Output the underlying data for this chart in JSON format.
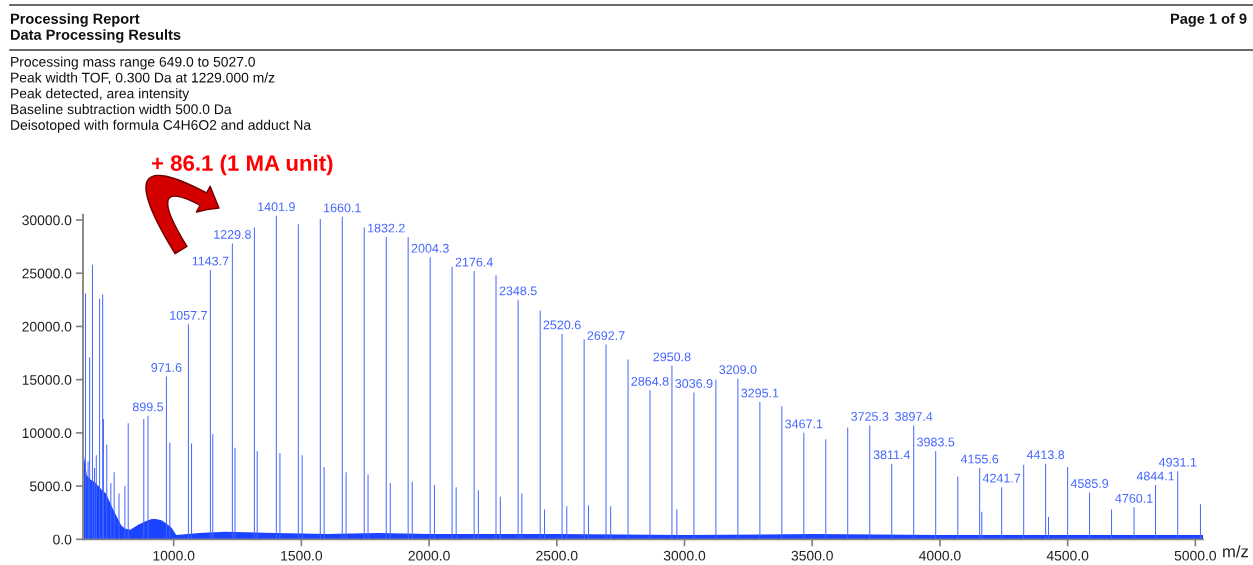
{
  "chart_data": {
    "type": "bar",
    "title": "Processing Report",
    "subtitle": "Data Processing Results",
    "xlabel": "m/z",
    "annotations": [
      "Processing mass range 649.0 to 5027.0",
      "Peak width TOF, 0.300 Da at 1229.000 m/z",
      "Peak detected, area intensity",
      "Baseline subtraction width 500.0 Da",
      "Deisotoped with formula C4H6O2 and adduct Na",
      "+ 86.1 (1 MA unit)",
      "Page 1 of 9",
      {
        "text": "899.5",
        "x": 899.5,
        "y": 11600
      },
      {
        "text": "971.6",
        "x": 971.6,
        "y": 15300
      },
      {
        "text": "1057.7",
        "x": 1057.7,
        "y": 20200
      },
      {
        "text": "1143.7",
        "x": 1143.7,
        "y": 25300
      },
      {
        "text": "1229.8",
        "x": 1229.8,
        "y": 27800
      },
      {
        "text": "1401.9",
        "x": 1401.9,
        "y": 30400
      },
      {
        "text": "1660.1",
        "x": 1660.1,
        "y": 30300
      },
      {
        "text": "1832.2",
        "x": 1832.2,
        "y": 28400
      },
      {
        "text": "2004.3",
        "x": 2004.3,
        "y": 26500
      },
      {
        "text": "2176.4",
        "x": 2176.4,
        "y": 25200
      },
      {
        "text": "2348.5",
        "x": 2348.5,
        "y": 22500
      },
      {
        "text": "2520.6",
        "x": 2520.6,
        "y": 19300
      },
      {
        "text": "2692.7",
        "x": 2692.7,
        "y": 18300
      },
      {
        "text": "2864.8",
        "x": 2864.8,
        "y": 14000
      },
      {
        "text": "2950.8",
        "x": 2950.8,
        "y": 16300
      },
      {
        "text": "3036.9",
        "x": 3036.9,
        "y": 13800
      },
      {
        "text": "3209.0",
        "x": 3209.0,
        "y": 15100
      },
      {
        "text": "3295.1",
        "x": 3295.1,
        "y": 12900
      },
      {
        "text": "3467.1",
        "x": 3467.1,
        "y": 10000
      },
      {
        "text": "3725.3",
        "x": 3725.3,
        "y": 10700
      },
      {
        "text": "3811.4",
        "x": 3811.4,
        "y": 7100
      },
      {
        "text": "3897.4",
        "x": 3897.4,
        "y": 10700
      },
      {
        "text": "3983.5",
        "x": 3983.5,
        "y": 8300
      },
      {
        "text": "4155.6",
        "x": 4155.6,
        "y": 6700
      },
      {
        "text": "4241.7",
        "x": 4241.7,
        "y": 4900
      },
      {
        "text": "4413.8",
        "x": 4413.8,
        "y": 7100
      },
      {
        "text": "4585.9",
        "x": 4585.9,
        "y": 4400
      },
      {
        "text": "4760.1",
        "x": 4760.1,
        "y": 3000
      },
      {
        "text": "4844.1",
        "x": 4844.1,
        "y": 5100
      },
      {
        "text": "4931.1",
        "x": 4931.1,
        "y": 6400
      }
    ],
    "xlim": [
      645,
      5030
    ],
    "ylim": [
      0,
      30500
    ],
    "xticks": [
      {
        "value": 1000,
        "label": "1000.0"
      },
      {
        "value": 1500,
        "label": "1500.0"
      },
      {
        "value": 2000,
        "label": "2000.0"
      },
      {
        "value": 2500,
        "label": "2500.0"
      },
      {
        "value": 3000,
        "label": "3000.0"
      },
      {
        "value": 3500,
        "label": "3500.0"
      },
      {
        "value": 4000,
        "label": "4000.0"
      },
      {
        "value": 4500,
        "label": "4500.0"
      },
      {
        "value": 5000,
        "label": "5000.0"
      }
    ],
    "yticks": [
      {
        "value": 0,
        "label": "0.0"
      },
      {
        "value": 5000,
        "label": "5000.0"
      },
      {
        "value": 10000,
        "label": "10000.0"
      },
      {
        "value": 15000,
        "label": "15000.0"
      },
      {
        "value": 20000,
        "label": "20000.0"
      },
      {
        "value": 25000,
        "label": "25000.0"
      },
      {
        "value": 30000,
        "label": "30000.0"
      }
    ],
    "series": [
      {
        "type": "area",
        "color": "#1a44ff",
        "x": [
          649,
          660,
          675,
          690,
          705,
          720,
          735,
          750,
          765,
          780,
          795,
          810,
          830,
          863,
          890,
          914,
          930,
          952,
          970,
          991,
          1010,
          1100,
          1200,
          1400,
          1600,
          1800,
          2000,
          2500,
          3000,
          3500,
          4000,
          4500,
          5030
        ],
        "values": [
          7800,
          6000,
          5600,
          5400,
          5000,
          4600,
          4300,
          3500,
          2700,
          2000,
          1300,
          1000,
          900,
          1400,
          1700,
          1900,
          1900,
          1800,
          1500,
          1100,
          400,
          600,
          700,
          600,
          500,
          600,
          500,
          500,
          400,
          500,
          400,
          400,
          400
        ]
      },
      {
        "color": "#4466ff",
        "x": [
          655,
          665,
          671,
          682,
          690,
          697,
          710,
          722,
          725,
          738,
          754,
          767,
          786,
          809,
          822,
          883,
          899.5,
          971.6,
          985,
          1057.7,
          1070,
          1143.7,
          1153,
          1229.8,
          1240,
          1316,
          1327,
          1401.9,
          1416,
          1488,
          1503,
          1574,
          1589,
          1660.1,
          1675,
          1746,
          1761,
          1832.2,
          1848,
          1918,
          1934,
          2004.3,
          2021,
          2090,
          2106,
          2176.4,
          2193,
          2262,
          2279,
          2348.5,
          2363,
          2435,
          2452,
          2520.6,
          2539,
          2607,
          2624,
          2692.7,
          2711,
          2779,
          2864.8,
          2950.8,
          2970,
          3036.9,
          3123,
          3209.0,
          3295.1,
          3381,
          3467.1,
          3553,
          3639,
          3725.3,
          3811.4,
          3897.4,
          3983.5,
          4070,
          4155.6,
          4164,
          4241.7,
          4328,
          4413.8,
          4425,
          4500,
          4585.9,
          4672,
          4760.1,
          4844.1,
          4931.1,
          5020
        ],
        "values": [
          23100,
          7300,
          17100,
          25800,
          6700,
          7900,
          22600,
          23000,
          11300,
          8900,
          5300,
          6300,
          4300,
          5000,
          10900,
          11300,
          11600,
          15300,
          9100,
          20200,
          9000,
          25300,
          9900,
          27800,
          8600,
          29300,
          8300,
          30400,
          8100,
          29600,
          7900,
          30100,
          6800,
          30300,
          6300,
          29300,
          6100,
          28400,
          5300,
          28400,
          5400,
          26500,
          5100,
          25600,
          4900,
          25200,
          4600,
          24800,
          4000,
          22500,
          4300,
          21500,
          2800,
          19300,
          3100,
          18800,
          3200,
          18300,
          3100,
          16900,
          14000,
          16300,
          2800,
          13800,
          15000,
          15100,
          12900,
          12500,
          10000,
          9400,
          10500,
          10700,
          7100,
          10700,
          8300,
          5900,
          6700,
          2600,
          4900,
          7000,
          7100,
          2100,
          6800,
          4400,
          2800,
          3000,
          5100,
          6400,
          3300
        ]
      }
    ]
  }
}
